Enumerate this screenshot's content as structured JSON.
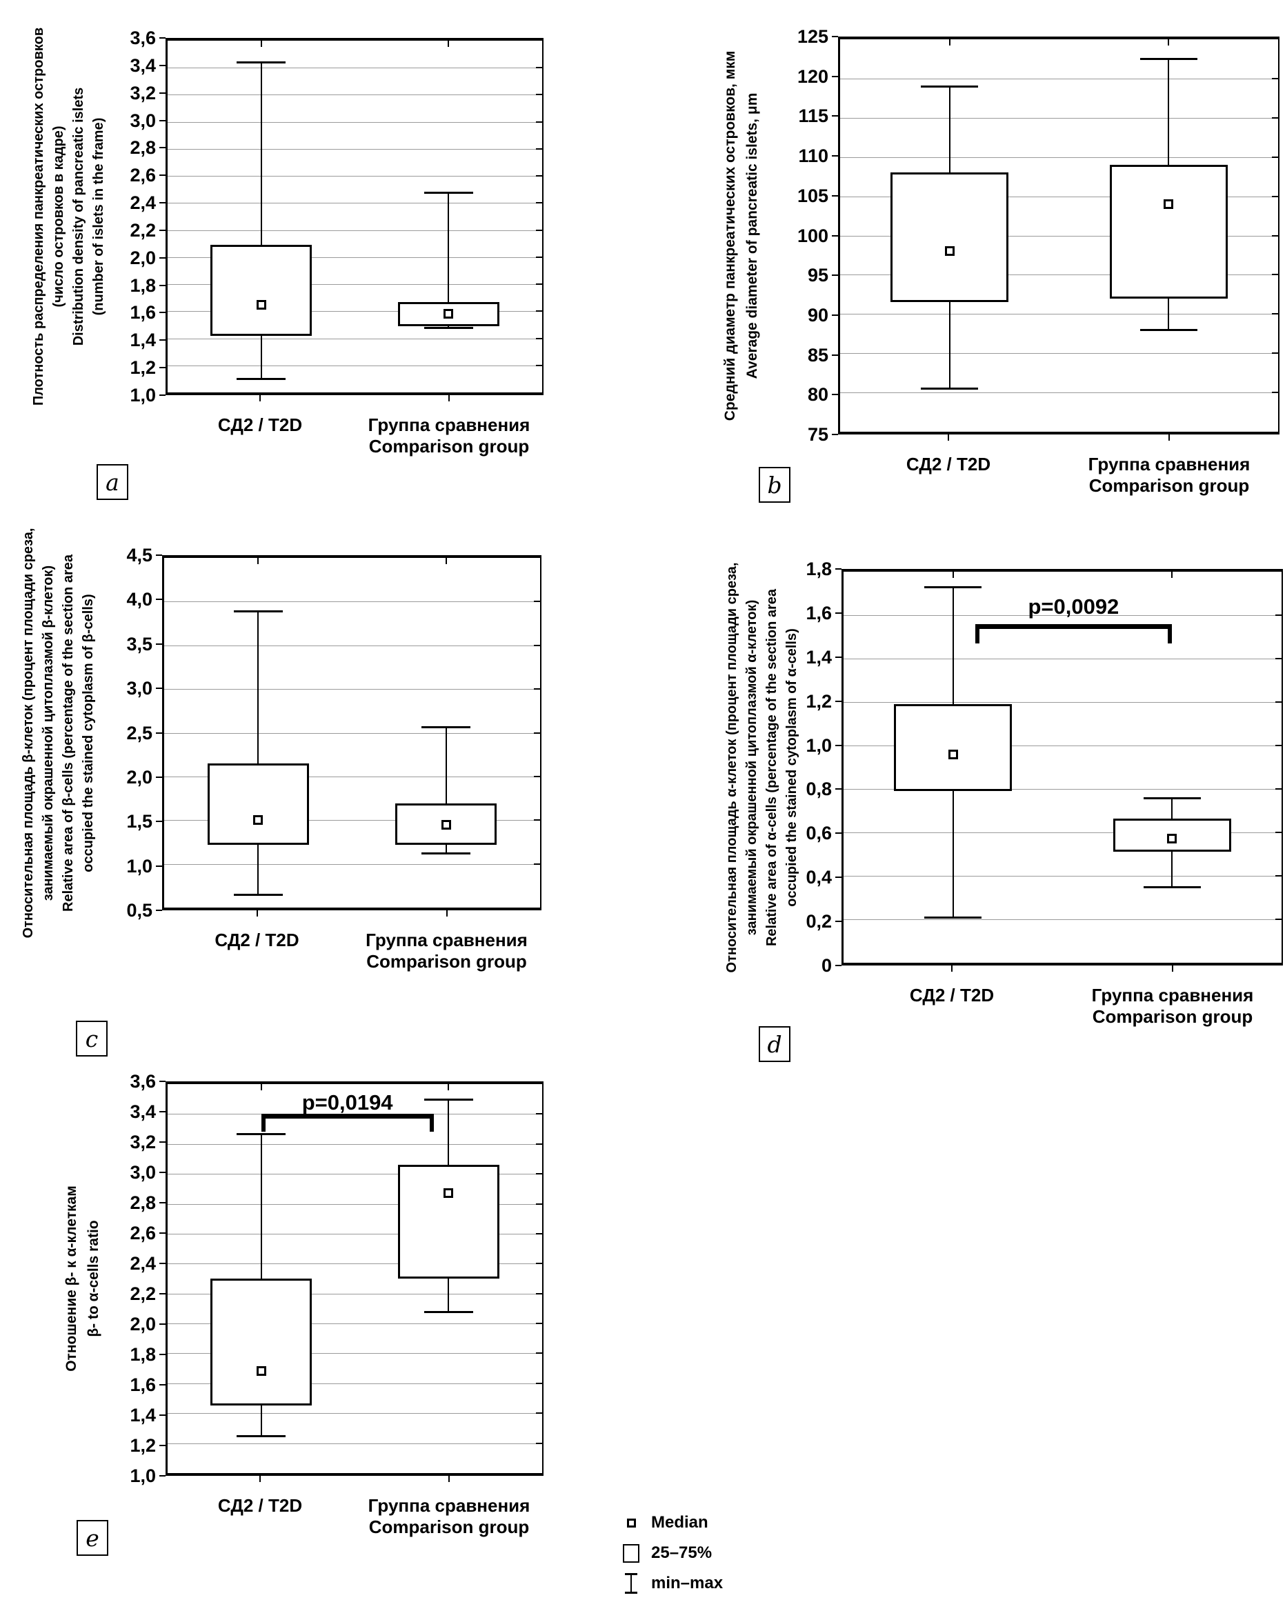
{
  "figure": {
    "background": "#ffffff",
    "ink_color": "#000000",
    "grid_color": "#9a9a9a"
  },
  "legend": {
    "median_label": "Median",
    "box_label": "25–75%",
    "whisker_label": "min–max"
  },
  "chart_data": [
    {
      "id": "a",
      "type": "box",
      "panel_letter": "a",
      "ylabel_lines": [
        "Плотность распределения панкреатических островков",
        "(число островков в кадре)",
        "Distribution density of pancreatic islets",
        "(number of islets in the frame)"
      ],
      "ylim": [
        1.0,
        3.6
      ],
      "ystep": 0.2,
      "decimals": 1,
      "grid": "horizontal",
      "category_positions_pct": [
        25,
        75
      ],
      "groups": [
        {
          "label_lines": [
            "СД2 / T2D"
          ],
          "min": 1.1,
          "q1": 1.42,
          "median": 1.65,
          "q3": 2.09,
          "max": 3.44
        },
        {
          "label_lines": [
            "Группа сравнения",
            "Comparison group"
          ],
          "min": 1.48,
          "q1": 1.49,
          "median": 1.58,
          "q3": 1.67,
          "max": 2.48
        }
      ],
      "p_annotation": null
    },
    {
      "id": "b",
      "type": "box",
      "panel_letter": "b",
      "ylabel_lines": [
        "Средний диаметр панкреатических островков, мкм",
        "Average diameter of pancreatic islets, μm"
      ],
      "ylim": [
        75,
        125
      ],
      "ystep": 5,
      "decimals": 0,
      "grid": "horizontal",
      "category_positions_pct": [
        25,
        75
      ],
      "groups": [
        {
          "label_lines": [
            "СД2 / T2D"
          ],
          "min": 80.5,
          "q1": 91.5,
          "median": 98,
          "q3": 108,
          "max": 119
        },
        {
          "label_lines": [
            "Группа сравнения",
            "Comparison group"
          ],
          "min": 88,
          "q1": 92,
          "median": 104,
          "q3": 109,
          "max": 122.5
        }
      ],
      "p_annotation": null
    },
    {
      "id": "c",
      "type": "box",
      "panel_letter": "c",
      "ylabel_lines": [
        "Относительная площадь β-клеток (процент площади среза,",
        "занимаемый окрашенной цитоплазмой β-клеток)",
        "Relative area of β-cells (percentage of the section area",
        "occupied the stained cytoplasm of β-cells)"
      ],
      "ylim": [
        0.5,
        4.5
      ],
      "ystep": 0.5,
      "decimals": 1,
      "grid": "horizontal",
      "category_positions_pct": [
        25,
        75
      ],
      "groups": [
        {
          "label_lines": [
            "СД2 / T2D"
          ],
          "min": 0.65,
          "q1": 1.22,
          "median": 1.5,
          "q3": 2.15,
          "max": 3.89
        },
        {
          "label_lines": [
            "Группа сравнения",
            "Comparison group"
          ],
          "min": 1.12,
          "q1": 1.22,
          "median": 1.45,
          "q3": 1.69,
          "max": 2.57
        }
      ],
      "p_annotation": null
    },
    {
      "id": "d",
      "type": "box",
      "panel_letter": "d",
      "ylabel_lines": [
        "Относительная площадь α-клеток (процент площади среза,",
        "занимаемый окрашенной цитоплазмой α-клеток)",
        "Relative area of α-cells (percentage of the section area",
        "occupied the stained cytoplasm of α-cells)"
      ],
      "ylim": [
        0,
        1.8
      ],
      "ystep": 0.2,
      "decimals": 1,
      "grid": "horizontal",
      "category_positions_pct": [
        25,
        75
      ],
      "groups": [
        {
          "label_lines": [
            "СД2 / T2D"
          ],
          "min": 0.21,
          "q1": 0.79,
          "median": 0.96,
          "q3": 1.19,
          "max": 1.73
        },
        {
          "label_lines": [
            "Группа сравнения",
            "Comparison group"
          ],
          "min": 0.35,
          "q1": 0.51,
          "median": 0.57,
          "q3": 0.665,
          "max": 0.76
        }
      ],
      "p_annotation": {
        "text": "p=0,0092",
        "y_line": 1.56,
        "y_drop": 1.47,
        "y_text": 1.67,
        "x1_pct": 30,
        "x2_pct": 75
      }
    },
    {
      "id": "e",
      "type": "box",
      "panel_letter": "e",
      "ylabel_lines": [
        "Отношение β- к α-клеткам",
        "β- to α-cells ratio"
      ],
      "ylim": [
        1.0,
        3.6
      ],
      "ystep": 0.2,
      "decimals": 1,
      "grid": "horizontal",
      "category_positions_pct": [
        25,
        75
      ],
      "groups": [
        {
          "label_lines": [
            "СД2 / T2D"
          ],
          "min": 1.25,
          "q1": 1.45,
          "median": 1.68,
          "q3": 2.3,
          "max": 3.27
        },
        {
          "label_lines": [
            "Группа сравнения",
            "Comparison group"
          ],
          "min": 2.08,
          "q1": 2.3,
          "median": 2.87,
          "q3": 3.06,
          "max": 3.5
        }
      ],
      "p_annotation": {
        "text": "p=0,0194",
        "y_line": 3.4,
        "y_drop": 3.28,
        "y_text": 3.52,
        "x1_pct": 25,
        "x2_pct": 71
      }
    }
  ]
}
